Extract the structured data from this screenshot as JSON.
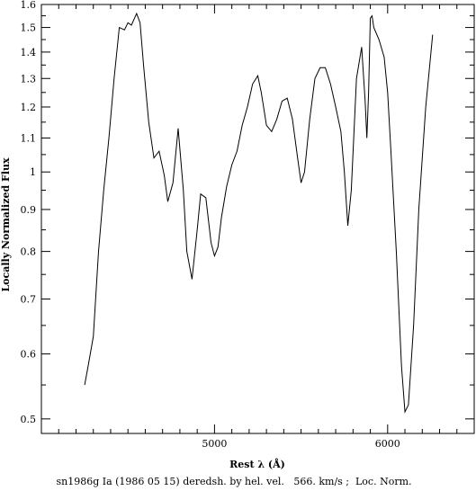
{
  "chart_data": {
    "type": "line",
    "title": "",
    "xlabel": "Rest λ (Å)",
    "ylabel": "Locally Normalized Flux",
    "caption": "sn1986g Ia (1986 05 15) deredsh. by hel. vel.   566. km/s ;  Loc. Norm.",
    "xlim": [
      4000,
      6500
    ],
    "ylim": [
      0.48,
      1.6
    ],
    "y_scale": "log",
    "grid": false,
    "legend": "none",
    "line_color": "#000000",
    "x_ticks": [
      {
        "value": 5000,
        "label": "5000"
      },
      {
        "value": 6000,
        "label": "6000"
      }
    ],
    "y_ticks": [
      {
        "value": 0.5,
        "label": "0.5"
      },
      {
        "value": 0.6,
        "label": "0.6"
      },
      {
        "value": 0.7,
        "label": "0.7"
      },
      {
        "value": 0.8,
        "label": "0.8"
      },
      {
        "value": 0.9,
        "label": "0.9"
      },
      {
        "value": 1.0,
        "label": "1"
      },
      {
        "value": 1.1,
        "label": "1.1"
      },
      {
        "value": 1.2,
        "label": "1.2"
      },
      {
        "value": 1.3,
        "label": "1.3"
      },
      {
        "value": 1.4,
        "label": "1.4"
      },
      {
        "value": 1.5,
        "label": "1.5"
      },
      {
        "value": 1.6,
        "label": "1.6"
      }
    ],
    "series": [
      {
        "x": [
          4250,
          4270,
          4300,
          4330,
          4360,
          4390,
          4420,
          4450,
          4480,
          4500,
          4520,
          4550,
          4570,
          4590,
          4620,
          4650,
          4680,
          4710,
          4730,
          4760,
          4790,
          4820,
          4840,
          4870,
          4900,
          4920,
          4950,
          4980,
          5000,
          5020,
          5040,
          5070,
          5100,
          5130,
          5160,
          5190,
          5220,
          5250,
          5270,
          5300,
          5330,
          5360,
          5390,
          5420,
          5450,
          5480,
          5500,
          5520,
          5550,
          5580,
          5610,
          5640,
          5670,
          5700,
          5730,
          5750,
          5770,
          5790,
          5820,
          5850,
          5870,
          5880,
          5890,
          5900,
          5910,
          5920,
          5950,
          5980,
          6000,
          6020,
          6050,
          6080,
          6100,
          6120,
          6150,
          6180,
          6220,
          6260
        ],
        "y": [
          0.55,
          0.58,
          0.63,
          0.8,
          0.95,
          1.1,
          1.3,
          1.5,
          1.49,
          1.52,
          1.51,
          1.56,
          1.52,
          1.35,
          1.15,
          1.04,
          1.06,
          0.99,
          0.92,
          0.97,
          1.13,
          0.95,
          0.8,
          0.74,
          0.85,
          0.94,
          0.93,
          0.82,
          0.79,
          0.81,
          0.88,
          0.96,
          1.02,
          1.06,
          1.14,
          1.2,
          1.28,
          1.31,
          1.25,
          1.14,
          1.12,
          1.16,
          1.22,
          1.23,
          1.16,
          1.04,
          0.97,
          1.0,
          1.16,
          1.3,
          1.34,
          1.34,
          1.28,
          1.2,
          1.12,
          1.0,
          0.86,
          0.95,
          1.3,
          1.42,
          1.22,
          1.1,
          1.25,
          1.54,
          1.55,
          1.5,
          1.45,
          1.38,
          1.25,
          1.05,
          0.8,
          0.58,
          0.51,
          0.52,
          0.65,
          0.9,
          1.2,
          1.47
        ]
      }
    ]
  }
}
